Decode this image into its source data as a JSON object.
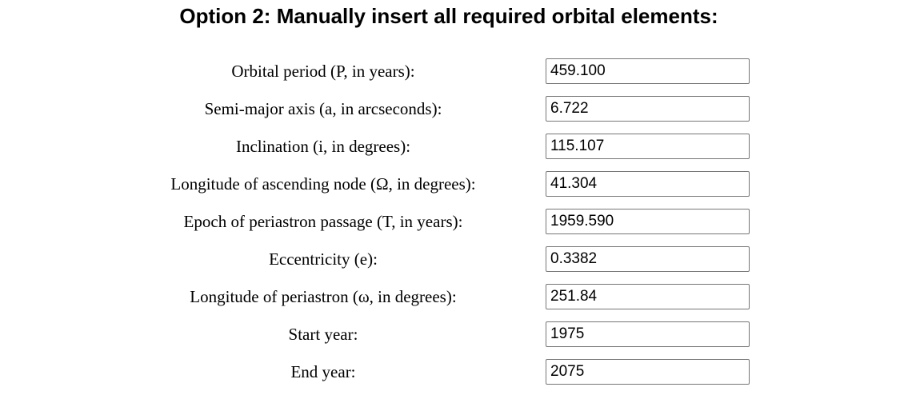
{
  "title": "Option 2: Manually insert all required orbital elements:",
  "fields": [
    {
      "label": "Orbital period (P, in years):",
      "value": "459.100"
    },
    {
      "label": "Semi-major axis (a, in arcseconds):",
      "value": "6.722"
    },
    {
      "label": "Inclination (i, in degrees):",
      "value": "115.107"
    },
    {
      "label": "Longitude of ascending node (Ω, in degrees):",
      "value": "41.304"
    },
    {
      "label": "Epoch of periastron passage (T, in years):",
      "value": "1959.590"
    },
    {
      "label": "Eccentricity (e):",
      "value": "0.3382"
    },
    {
      "label": "Longitude of periastron (ω, in degrees):",
      "value": "251.84"
    },
    {
      "label": "Start year:",
      "value": "1975"
    },
    {
      "label": "End year:",
      "value": "2075"
    }
  ]
}
